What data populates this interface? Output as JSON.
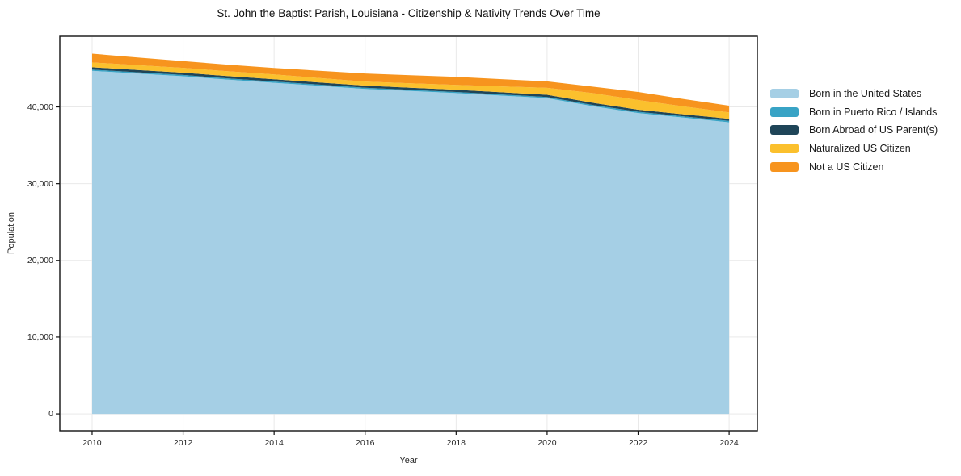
{
  "title": "St. John the Baptist Parish, Louisiana - Citizenship & Nativity Trends Over Time",
  "chart_data": {
    "type": "area",
    "stacked": true,
    "title": "St. John the Baptist Parish, Louisiana - Citizenship & Nativity Trends Over Time",
    "xlabel": "Year",
    "ylabel": "Population",
    "x": [
      2010,
      2011,
      2012,
      2013,
      2014,
      2015,
      2016,
      2017,
      2018,
      2019,
      2020,
      2021,
      2022,
      2023,
      2024
    ],
    "series": [
      {
        "name": "Born in the United States",
        "color": "#A5CFE5",
        "values": [
          44700,
          44350,
          44000,
          43550,
          43150,
          42750,
          42350,
          42075,
          41800,
          41475,
          41150,
          40100,
          39200,
          38600,
          38000
        ]
      },
      {
        "name": "Born in Puerto Rico / Islands",
        "color": "#38A3C5",
        "values": [
          160,
          160,
          160,
          160,
          160,
          150,
          150,
          150,
          150,
          150,
          150,
          160,
          170,
          160,
          180
        ]
      },
      {
        "name": "Born Abroad of US Parent(s)",
        "color": "#1F4558",
        "values": [
          300,
          300,
          300,
          300,
          290,
          290,
          280,
          280,
          280,
          280,
          280,
          280,
          270,
          270,
          280
        ]
      },
      {
        "name": "Naturalized US Citizen",
        "color": "#FBC02D",
        "values": [
          630,
          630,
          630,
          630,
          630,
          575,
          520,
          575,
          630,
          765,
          900,
          1260,
          1260,
          1040,
          820
        ]
      },
      {
        "name": "Not a US Citizen",
        "color": "#F7941E",
        "values": [
          1150,
          1010,
          870,
          855,
          840,
          945,
          1050,
          1050,
          1050,
          945,
          840,
          840,
          1050,
          965,
          880
        ]
      }
    ],
    "x_ticks": [
      2010,
      2012,
      2014,
      2016,
      2018,
      2020,
      2022,
      2024
    ],
    "x_tick_labels": [
      "2010",
      "2012",
      "2014",
      "2016",
      "2018",
      "2020",
      "2022",
      "2024"
    ],
    "y_ticks": [
      0,
      10000,
      20000,
      30000,
      40000
    ],
    "y_tick_labels": [
      "0",
      "10,000",
      "20,000",
      "30,000",
      "40,000"
    ],
    "xlim": [
      2009.29,
      2024.62
    ],
    "ylim": [
      -2200,
      49200
    ],
    "grid": true,
    "grid_color": "#e9e9e9",
    "spine_color": "#111111",
    "legend_position": "right outside"
  }
}
